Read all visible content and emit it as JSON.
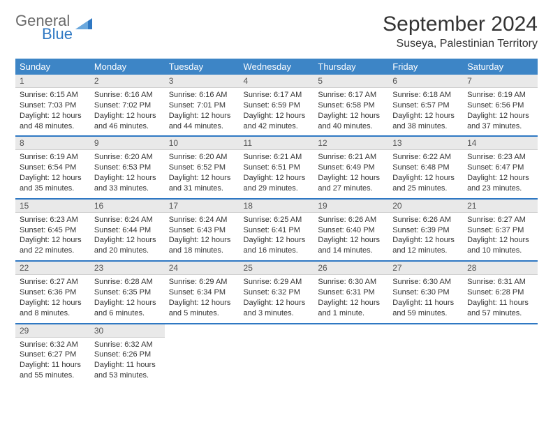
{
  "logo": {
    "line1": "General",
    "line2": "Blue",
    "color_general": "#6b6b6b",
    "color_blue": "#2f78c3"
  },
  "header": {
    "month_title": "September 2024",
    "location": "Suseya, Palestinian Territory"
  },
  "theme": {
    "header_bg": "#3d85c6",
    "header_fg": "#ffffff",
    "daynum_bg": "#e9e9e9",
    "sep_color": "#2f78c3"
  },
  "day_names": [
    "Sunday",
    "Monday",
    "Tuesday",
    "Wednesday",
    "Thursday",
    "Friday",
    "Saturday"
  ],
  "weeks": [
    [
      {
        "n": "1",
        "sr": "Sunrise: 6:15 AM",
        "ss": "Sunset: 7:03 PM",
        "dl1": "Daylight: 12 hours",
        "dl2": "and 48 minutes."
      },
      {
        "n": "2",
        "sr": "Sunrise: 6:16 AM",
        "ss": "Sunset: 7:02 PM",
        "dl1": "Daylight: 12 hours",
        "dl2": "and 46 minutes."
      },
      {
        "n": "3",
        "sr": "Sunrise: 6:16 AM",
        "ss": "Sunset: 7:01 PM",
        "dl1": "Daylight: 12 hours",
        "dl2": "and 44 minutes."
      },
      {
        "n": "4",
        "sr": "Sunrise: 6:17 AM",
        "ss": "Sunset: 6:59 PM",
        "dl1": "Daylight: 12 hours",
        "dl2": "and 42 minutes."
      },
      {
        "n": "5",
        "sr": "Sunrise: 6:17 AM",
        "ss": "Sunset: 6:58 PM",
        "dl1": "Daylight: 12 hours",
        "dl2": "and 40 minutes."
      },
      {
        "n": "6",
        "sr": "Sunrise: 6:18 AM",
        "ss": "Sunset: 6:57 PM",
        "dl1": "Daylight: 12 hours",
        "dl2": "and 38 minutes."
      },
      {
        "n": "7",
        "sr": "Sunrise: 6:19 AM",
        "ss": "Sunset: 6:56 PM",
        "dl1": "Daylight: 12 hours",
        "dl2": "and 37 minutes."
      }
    ],
    [
      {
        "n": "8",
        "sr": "Sunrise: 6:19 AM",
        "ss": "Sunset: 6:54 PM",
        "dl1": "Daylight: 12 hours",
        "dl2": "and 35 minutes."
      },
      {
        "n": "9",
        "sr": "Sunrise: 6:20 AM",
        "ss": "Sunset: 6:53 PM",
        "dl1": "Daylight: 12 hours",
        "dl2": "and 33 minutes."
      },
      {
        "n": "10",
        "sr": "Sunrise: 6:20 AM",
        "ss": "Sunset: 6:52 PM",
        "dl1": "Daylight: 12 hours",
        "dl2": "and 31 minutes."
      },
      {
        "n": "11",
        "sr": "Sunrise: 6:21 AM",
        "ss": "Sunset: 6:51 PM",
        "dl1": "Daylight: 12 hours",
        "dl2": "and 29 minutes."
      },
      {
        "n": "12",
        "sr": "Sunrise: 6:21 AM",
        "ss": "Sunset: 6:49 PM",
        "dl1": "Daylight: 12 hours",
        "dl2": "and 27 minutes."
      },
      {
        "n": "13",
        "sr": "Sunrise: 6:22 AM",
        "ss": "Sunset: 6:48 PM",
        "dl1": "Daylight: 12 hours",
        "dl2": "and 25 minutes."
      },
      {
        "n": "14",
        "sr": "Sunrise: 6:23 AM",
        "ss": "Sunset: 6:47 PM",
        "dl1": "Daylight: 12 hours",
        "dl2": "and 23 minutes."
      }
    ],
    [
      {
        "n": "15",
        "sr": "Sunrise: 6:23 AM",
        "ss": "Sunset: 6:45 PM",
        "dl1": "Daylight: 12 hours",
        "dl2": "and 22 minutes."
      },
      {
        "n": "16",
        "sr": "Sunrise: 6:24 AM",
        "ss": "Sunset: 6:44 PM",
        "dl1": "Daylight: 12 hours",
        "dl2": "and 20 minutes."
      },
      {
        "n": "17",
        "sr": "Sunrise: 6:24 AM",
        "ss": "Sunset: 6:43 PM",
        "dl1": "Daylight: 12 hours",
        "dl2": "and 18 minutes."
      },
      {
        "n": "18",
        "sr": "Sunrise: 6:25 AM",
        "ss": "Sunset: 6:41 PM",
        "dl1": "Daylight: 12 hours",
        "dl2": "and 16 minutes."
      },
      {
        "n": "19",
        "sr": "Sunrise: 6:26 AM",
        "ss": "Sunset: 6:40 PM",
        "dl1": "Daylight: 12 hours",
        "dl2": "and 14 minutes."
      },
      {
        "n": "20",
        "sr": "Sunrise: 6:26 AM",
        "ss": "Sunset: 6:39 PM",
        "dl1": "Daylight: 12 hours",
        "dl2": "and 12 minutes."
      },
      {
        "n": "21",
        "sr": "Sunrise: 6:27 AM",
        "ss": "Sunset: 6:37 PM",
        "dl1": "Daylight: 12 hours",
        "dl2": "and 10 minutes."
      }
    ],
    [
      {
        "n": "22",
        "sr": "Sunrise: 6:27 AM",
        "ss": "Sunset: 6:36 PM",
        "dl1": "Daylight: 12 hours",
        "dl2": "and 8 minutes."
      },
      {
        "n": "23",
        "sr": "Sunrise: 6:28 AM",
        "ss": "Sunset: 6:35 PM",
        "dl1": "Daylight: 12 hours",
        "dl2": "and 6 minutes."
      },
      {
        "n": "24",
        "sr": "Sunrise: 6:29 AM",
        "ss": "Sunset: 6:34 PM",
        "dl1": "Daylight: 12 hours",
        "dl2": "and 5 minutes."
      },
      {
        "n": "25",
        "sr": "Sunrise: 6:29 AM",
        "ss": "Sunset: 6:32 PM",
        "dl1": "Daylight: 12 hours",
        "dl2": "and 3 minutes."
      },
      {
        "n": "26",
        "sr": "Sunrise: 6:30 AM",
        "ss": "Sunset: 6:31 PM",
        "dl1": "Daylight: 12 hours",
        "dl2": "and 1 minute."
      },
      {
        "n": "27",
        "sr": "Sunrise: 6:30 AM",
        "ss": "Sunset: 6:30 PM",
        "dl1": "Daylight: 11 hours",
        "dl2": "and 59 minutes."
      },
      {
        "n": "28",
        "sr": "Sunrise: 6:31 AM",
        "ss": "Sunset: 6:28 PM",
        "dl1": "Daylight: 11 hours",
        "dl2": "and 57 minutes."
      }
    ],
    [
      {
        "n": "29",
        "sr": "Sunrise: 6:32 AM",
        "ss": "Sunset: 6:27 PM",
        "dl1": "Daylight: 11 hours",
        "dl2": "and 55 minutes."
      },
      {
        "n": "30",
        "sr": "Sunrise: 6:32 AM",
        "ss": "Sunset: 6:26 PM",
        "dl1": "Daylight: 11 hours",
        "dl2": "and 53 minutes."
      },
      {
        "empty": true
      },
      {
        "empty": true
      },
      {
        "empty": true
      },
      {
        "empty": true
      },
      {
        "empty": true
      }
    ]
  ]
}
